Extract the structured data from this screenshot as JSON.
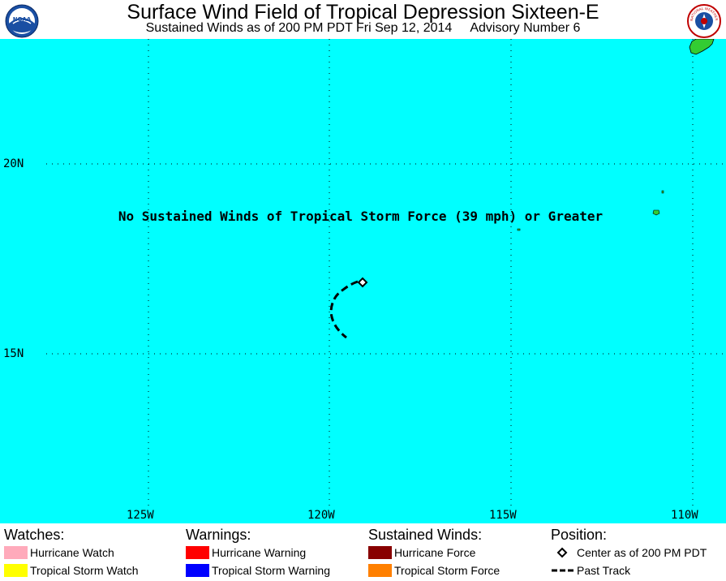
{
  "header": {
    "title": "Surface Wind Field of Tropical Depression Sixteen-E",
    "subtitle_time": "Sustained Winds as of 200 PM PDT Fri Sep 12, 2014",
    "subtitle_advisory": "Advisory Number 6",
    "noaa_logo_text": "NOAA",
    "nws_logo_text": "NATIONAL WEATHER SERVICE"
  },
  "map": {
    "ocean_color": "#00ffff",
    "land_color": "#33cc33",
    "latitude_labels": [
      "20N",
      "15N"
    ],
    "longitude_labels": [
      "125W",
      "120W",
      "115W",
      "110W"
    ],
    "notice": "No Sustained Winds of Tropical Storm Force (39 mph) or Greater"
  },
  "legend": {
    "watches": {
      "heading": "Watches:",
      "items": [
        {
          "label": "Hurricane Watch",
          "color": "#ffaabb"
        },
        {
          "label": "Tropical Storm Watch",
          "color": "#ffff00"
        }
      ]
    },
    "warnings": {
      "heading": "Warnings:",
      "items": [
        {
          "label": "Hurricane Warning",
          "color": "#ff0000"
        },
        {
          "label": "Tropical Storm Warning",
          "color": "#0000ff"
        }
      ]
    },
    "winds": {
      "heading": "Sustained Winds:",
      "items": [
        {
          "label": "Hurricane Force",
          "color": "#880000"
        },
        {
          "label": "Tropical Storm Force",
          "color": "#ff8000"
        }
      ]
    },
    "position": {
      "heading": "Position:",
      "items": [
        {
          "label": "Center as of 200 PM PDT",
          "symbol": "diamond-icon"
        },
        {
          "label": "Past Track",
          "symbol": "dashed-line-icon"
        }
      ]
    }
  }
}
